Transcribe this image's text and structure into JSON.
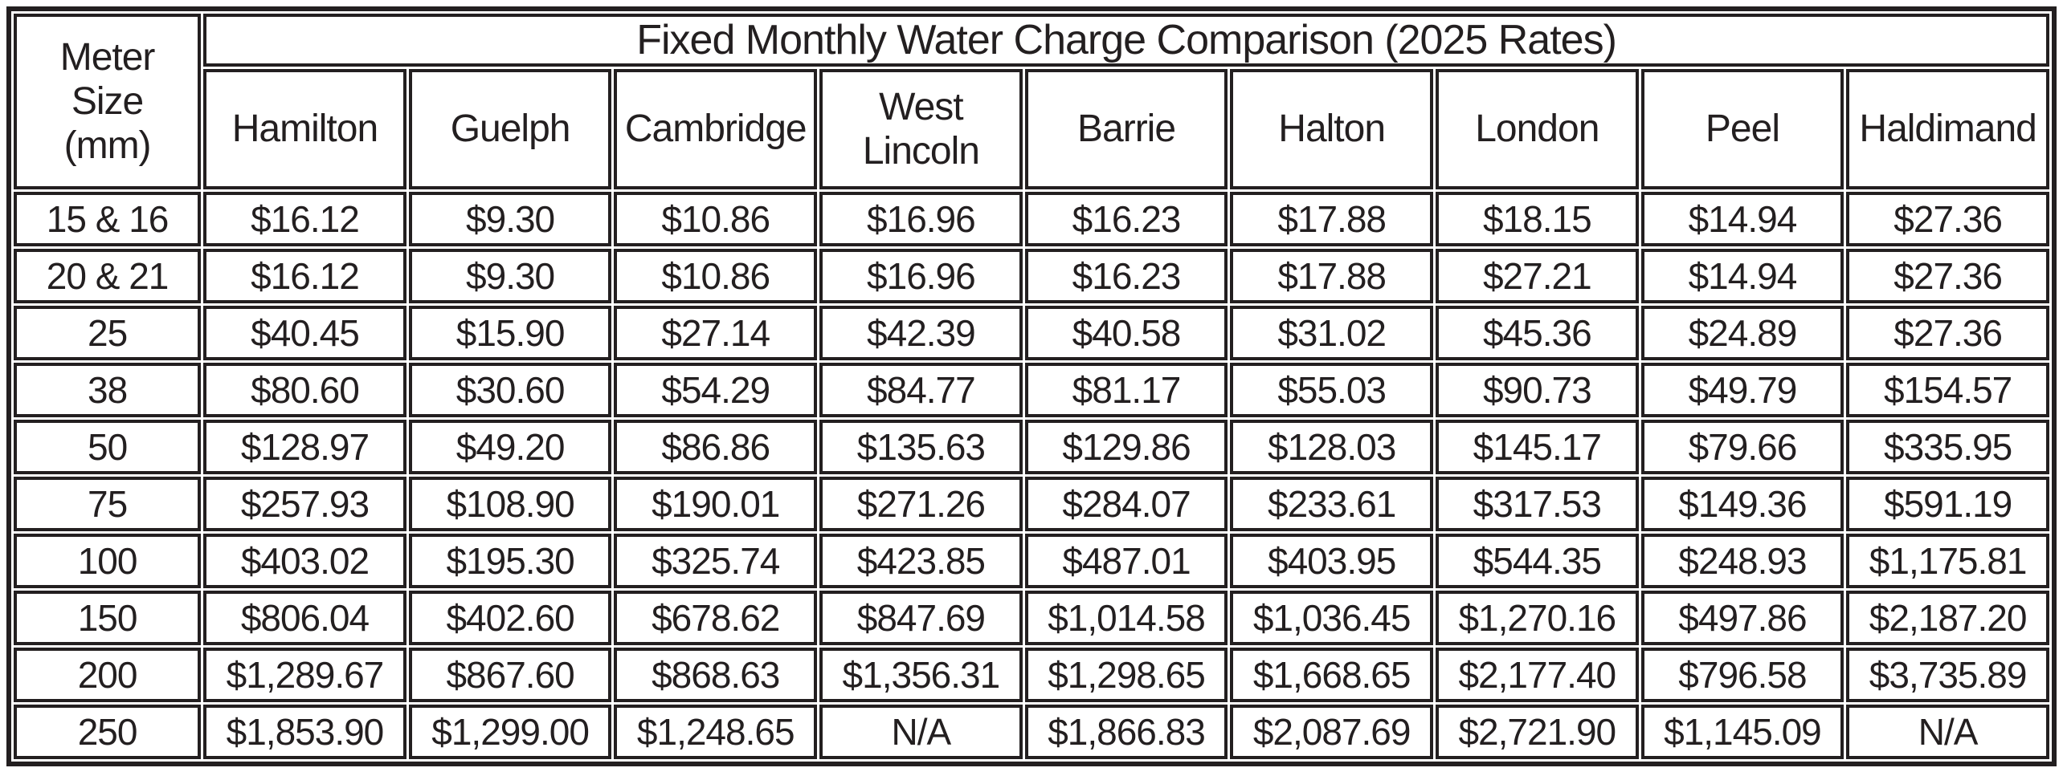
{
  "colors": {
    "border": "#231f20",
    "text": "#231f20",
    "background": "#ffffff"
  },
  "chart_data": {
    "type": "table",
    "title": "Fixed Monthly Water Charge Comparison (2025 Rates)",
    "row_header_label": "Meter\nSize\n(mm)",
    "columns": [
      "Hamilton",
      "Guelph",
      "Cambridge",
      "West Lincoln",
      "Barrie",
      "Halton",
      "London",
      "Peel",
      "Haldimand"
    ],
    "rows": [
      {
        "meter_size": "15 & 16",
        "values": [
          "$16.12",
          "$9.30",
          "$10.86",
          "$16.96",
          "$16.23",
          "$17.88",
          "$18.15",
          "$14.94",
          "$27.36"
        ]
      },
      {
        "meter_size": "20 & 21",
        "values": [
          "$16.12",
          "$9.30",
          "$10.86",
          "$16.96",
          "$16.23",
          "$17.88",
          "$27.21",
          "$14.94",
          "$27.36"
        ]
      },
      {
        "meter_size": "25",
        "values": [
          "$40.45",
          "$15.90",
          "$27.14",
          "$42.39",
          "$40.58",
          "$31.02",
          "$45.36",
          "$24.89",
          "$27.36"
        ]
      },
      {
        "meter_size": "38",
        "values": [
          "$80.60",
          "$30.60",
          "$54.29",
          "$84.77",
          "$81.17",
          "$55.03",
          "$90.73",
          "$49.79",
          "$154.57"
        ]
      },
      {
        "meter_size": "50",
        "values": [
          "$128.97",
          "$49.20",
          "$86.86",
          "$135.63",
          "$129.86",
          "$128.03",
          "$145.17",
          "$79.66",
          "$335.95"
        ]
      },
      {
        "meter_size": "75",
        "values": [
          "$257.93",
          "$108.90",
          "$190.01",
          "$271.26",
          "$284.07",
          "$233.61",
          "$317.53",
          "$149.36",
          "$591.19"
        ]
      },
      {
        "meter_size": "100",
        "values": [
          "$403.02",
          "$195.30",
          "$325.74",
          "$423.85",
          "$487.01",
          "$403.95",
          "$544.35",
          "$248.93",
          "$1,175.81"
        ]
      },
      {
        "meter_size": "150",
        "values": [
          "$806.04",
          "$402.60",
          "$678.62",
          "$847.69",
          "$1,014.58",
          "$1,036.45",
          "$1,270.16",
          "$497.86",
          "$2,187.20"
        ]
      },
      {
        "meter_size": "200",
        "values": [
          "$1,289.67",
          "$867.60",
          "$868.63",
          "$1,356.31",
          "$1,298.65",
          "$1,668.65",
          "$2,177.40",
          "$796.58",
          "$3,735.89"
        ]
      },
      {
        "meter_size": "250",
        "values": [
          "$1,853.90",
          "$1,299.00",
          "$1,248.65",
          "N/A",
          "$1,866.83",
          "$2,087.69",
          "$2,721.90",
          "$1,145.09",
          "N/A"
        ]
      }
    ]
  }
}
